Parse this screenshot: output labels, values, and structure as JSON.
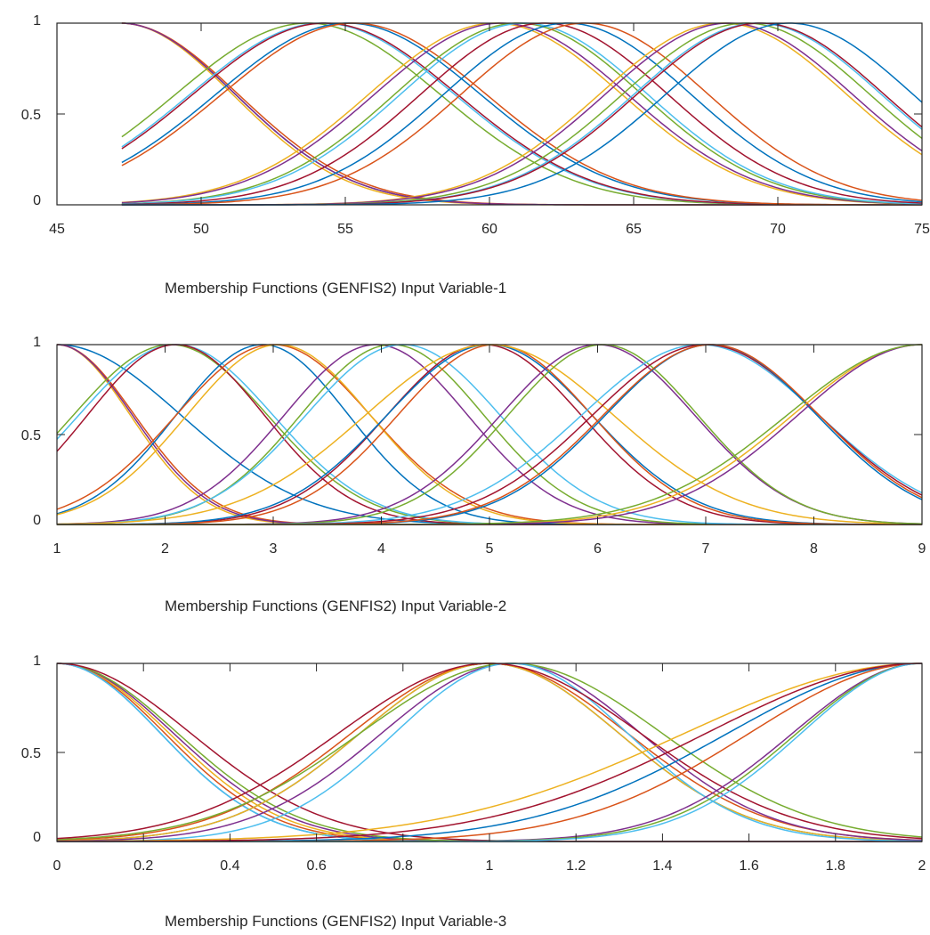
{
  "palette": [
    "#0072BD",
    "#D95319",
    "#EDB120",
    "#7E2F8E",
    "#77AC30",
    "#4DBEEE",
    "#A2142F"
  ],
  "chart_data": [
    {
      "type": "line",
      "title": "",
      "xlabel": "Membership Functions (GENFIS2) Input Variable-1",
      "ylabel": "",
      "xlim": [
        45,
        75
      ],
      "ylim": [
        0,
        1
      ],
      "xticks": [
        "45",
        "50",
        "55",
        "60",
        "65",
        "70",
        "75"
      ],
      "yticks": [
        "0",
        "0.5",
        "1"
      ],
      "grid": false,
      "legend": "none",
      "curve_family": "gaussmf",
      "x_domain": [
        47.25,
        75
      ],
      "series": [
        {
          "center": 47.2,
          "sigma": 4.0
        },
        {
          "center": 47.2,
          "sigma": 4.1
        },
        {
          "center": 47.2,
          "sigma": 3.9
        },
        {
          "center": 47.2,
          "sigma": 4.0
        },
        {
          "center": 53.7,
          "sigma": 4.6
        },
        {
          "center": 54.2,
          "sigma": 4.6
        },
        {
          "center": 54.3,
          "sigma": 4.6
        },
        {
          "center": 55.1,
          "sigma": 4.6
        },
        {
          "center": 55.3,
          "sigma": 4.6
        },
        {
          "center": 60.2,
          "sigma": 4.4
        },
        {
          "center": 60.4,
          "sigma": 4.4
        },
        {
          "center": 61.0,
          "sigma": 4.3
        },
        {
          "center": 61.2,
          "sigma": 4.3
        },
        {
          "center": 61.9,
          "sigma": 4.3
        },
        {
          "center": 62.7,
          "sigma": 4.3
        },
        {
          "center": 63.3,
          "sigma": 4.3
        },
        {
          "center": 68.1,
          "sigma": 4.3
        },
        {
          "center": 68.3,
          "sigma": 4.3
        },
        {
          "center": 68.9,
          "sigma": 4.3
        },
        {
          "center": 69.3,
          "sigma": 4.3
        },
        {
          "center": 69.4,
          "sigma": 4.3
        },
        {
          "center": 70.4,
          "sigma": 4.3
        }
      ]
    },
    {
      "type": "line",
      "title": "",
      "xlabel": "Membership Functions (GENFIS2) Input Variable-2",
      "ylabel": "",
      "xlim": [
        1,
        9
      ],
      "ylim": [
        0,
        1
      ],
      "xticks": [
        "1",
        "2",
        "3",
        "4",
        "5",
        "6",
        "7",
        "8",
        "9"
      ],
      "yticks": [
        "0",
        "0.5",
        "1"
      ],
      "grid": false,
      "legend": "none",
      "curve_family": "gaussmf",
      "x_domain": [
        1,
        9
      ],
      "series": [
        {
          "center": 1.0,
          "sigma": 1.15
        },
        {
          "center": 1.0,
          "sigma": 0.72
        },
        {
          "center": 1.0,
          "sigma": 0.68
        },
        {
          "center": 1.0,
          "sigma": 0.7
        },
        {
          "center": 2.05,
          "sigma": 0.9
        },
        {
          "center": 2.1,
          "sigma": 0.9
        },
        {
          "center": 2.1,
          "sigma": 0.82
        },
        {
          "center": 2.9,
          "sigma": 0.8
        },
        {
          "center": 3.0,
          "sigma": 0.9
        },
        {
          "center": 3.05,
          "sigma": 0.85
        },
        {
          "center": 3.95,
          "sigma": 0.85
        },
        {
          "center": 4.1,
          "sigma": 0.85
        },
        {
          "center": 4.2,
          "sigma": 0.9
        },
        {
          "center": 4.95,
          "sigma": 0.9
        },
        {
          "center": 5.0,
          "sigma": 0.95
        },
        {
          "center": 5.05,
          "sigma": 0.9
        },
        {
          "center": 5.0,
          "sigma": 1.15
        },
        {
          "center": 6.0,
          "sigma": 0.9
        },
        {
          "center": 6.05,
          "sigma": 0.88
        },
        {
          "center": 6.95,
          "sigma": 1.1
        },
        {
          "center": 7.0,
          "sigma": 1.05
        },
        {
          "center": 7.05,
          "sigma": 0.98
        },
        {
          "center": 7.05,
          "sigma": 1.0
        },
        {
          "center": 9.0,
          "sigma": 1.2
        },
        {
          "center": 9.0,
          "sigma": 1.15
        },
        {
          "center": 9.0,
          "sigma": 1.25
        }
      ]
    },
    {
      "type": "line",
      "title": "",
      "xlabel": "Membership Functions (GENFIS2) Input Variable-3",
      "ylabel": "",
      "xlim": [
        0,
        2
      ],
      "ylim": [
        0,
        1
      ],
      "xticks": [
        "0",
        "0.2",
        "0.4",
        "0.6",
        "0.8",
        "1",
        "1.2",
        "1.4",
        "1.6",
        "1.8",
        "2"
      ],
      "yticks": [
        "0",
        "0.5",
        "1"
      ],
      "grid": false,
      "legend": "none",
      "curve_family": "gaussmf",
      "x_domain": [
        0,
        2
      ],
      "series": [
        {
          "center": 0.0,
          "sigma": 0.24
        },
        {
          "center": 0.0,
          "sigma": 0.25
        },
        {
          "center": 0.0,
          "sigma": 0.26
        },
        {
          "center": 0.0,
          "sigma": 0.27
        },
        {
          "center": 0.0,
          "sigma": 0.28
        },
        {
          "center": 0.0,
          "sigma": 0.24
        },
        {
          "center": 0.0,
          "sigma": 0.31
        },
        {
          "center": 1.0,
          "sigma": 0.3
        },
        {
          "center": 1.0,
          "sigma": 0.32
        },
        {
          "center": 1.0,
          "sigma": 0.3
        },
        {
          "center": 1.05,
          "sigma": 0.3
        },
        {
          "center": 1.05,
          "sigma": 0.35
        },
        {
          "center": 1.05,
          "sigma": 0.27
        },
        {
          "center": 1.0,
          "sigma": 0.35
        },
        {
          "center": 2.0,
          "sigma": 0.45
        },
        {
          "center": 2.0,
          "sigma": 0.4
        },
        {
          "center": 2.0,
          "sigma": 0.55
        },
        {
          "center": 2.0,
          "sigma": 0.3
        },
        {
          "center": 2.0,
          "sigma": 0.29
        },
        {
          "center": 2.0,
          "sigma": 0.28
        },
        {
          "center": 2.0,
          "sigma": 0.5
        }
      ]
    }
  ]
}
